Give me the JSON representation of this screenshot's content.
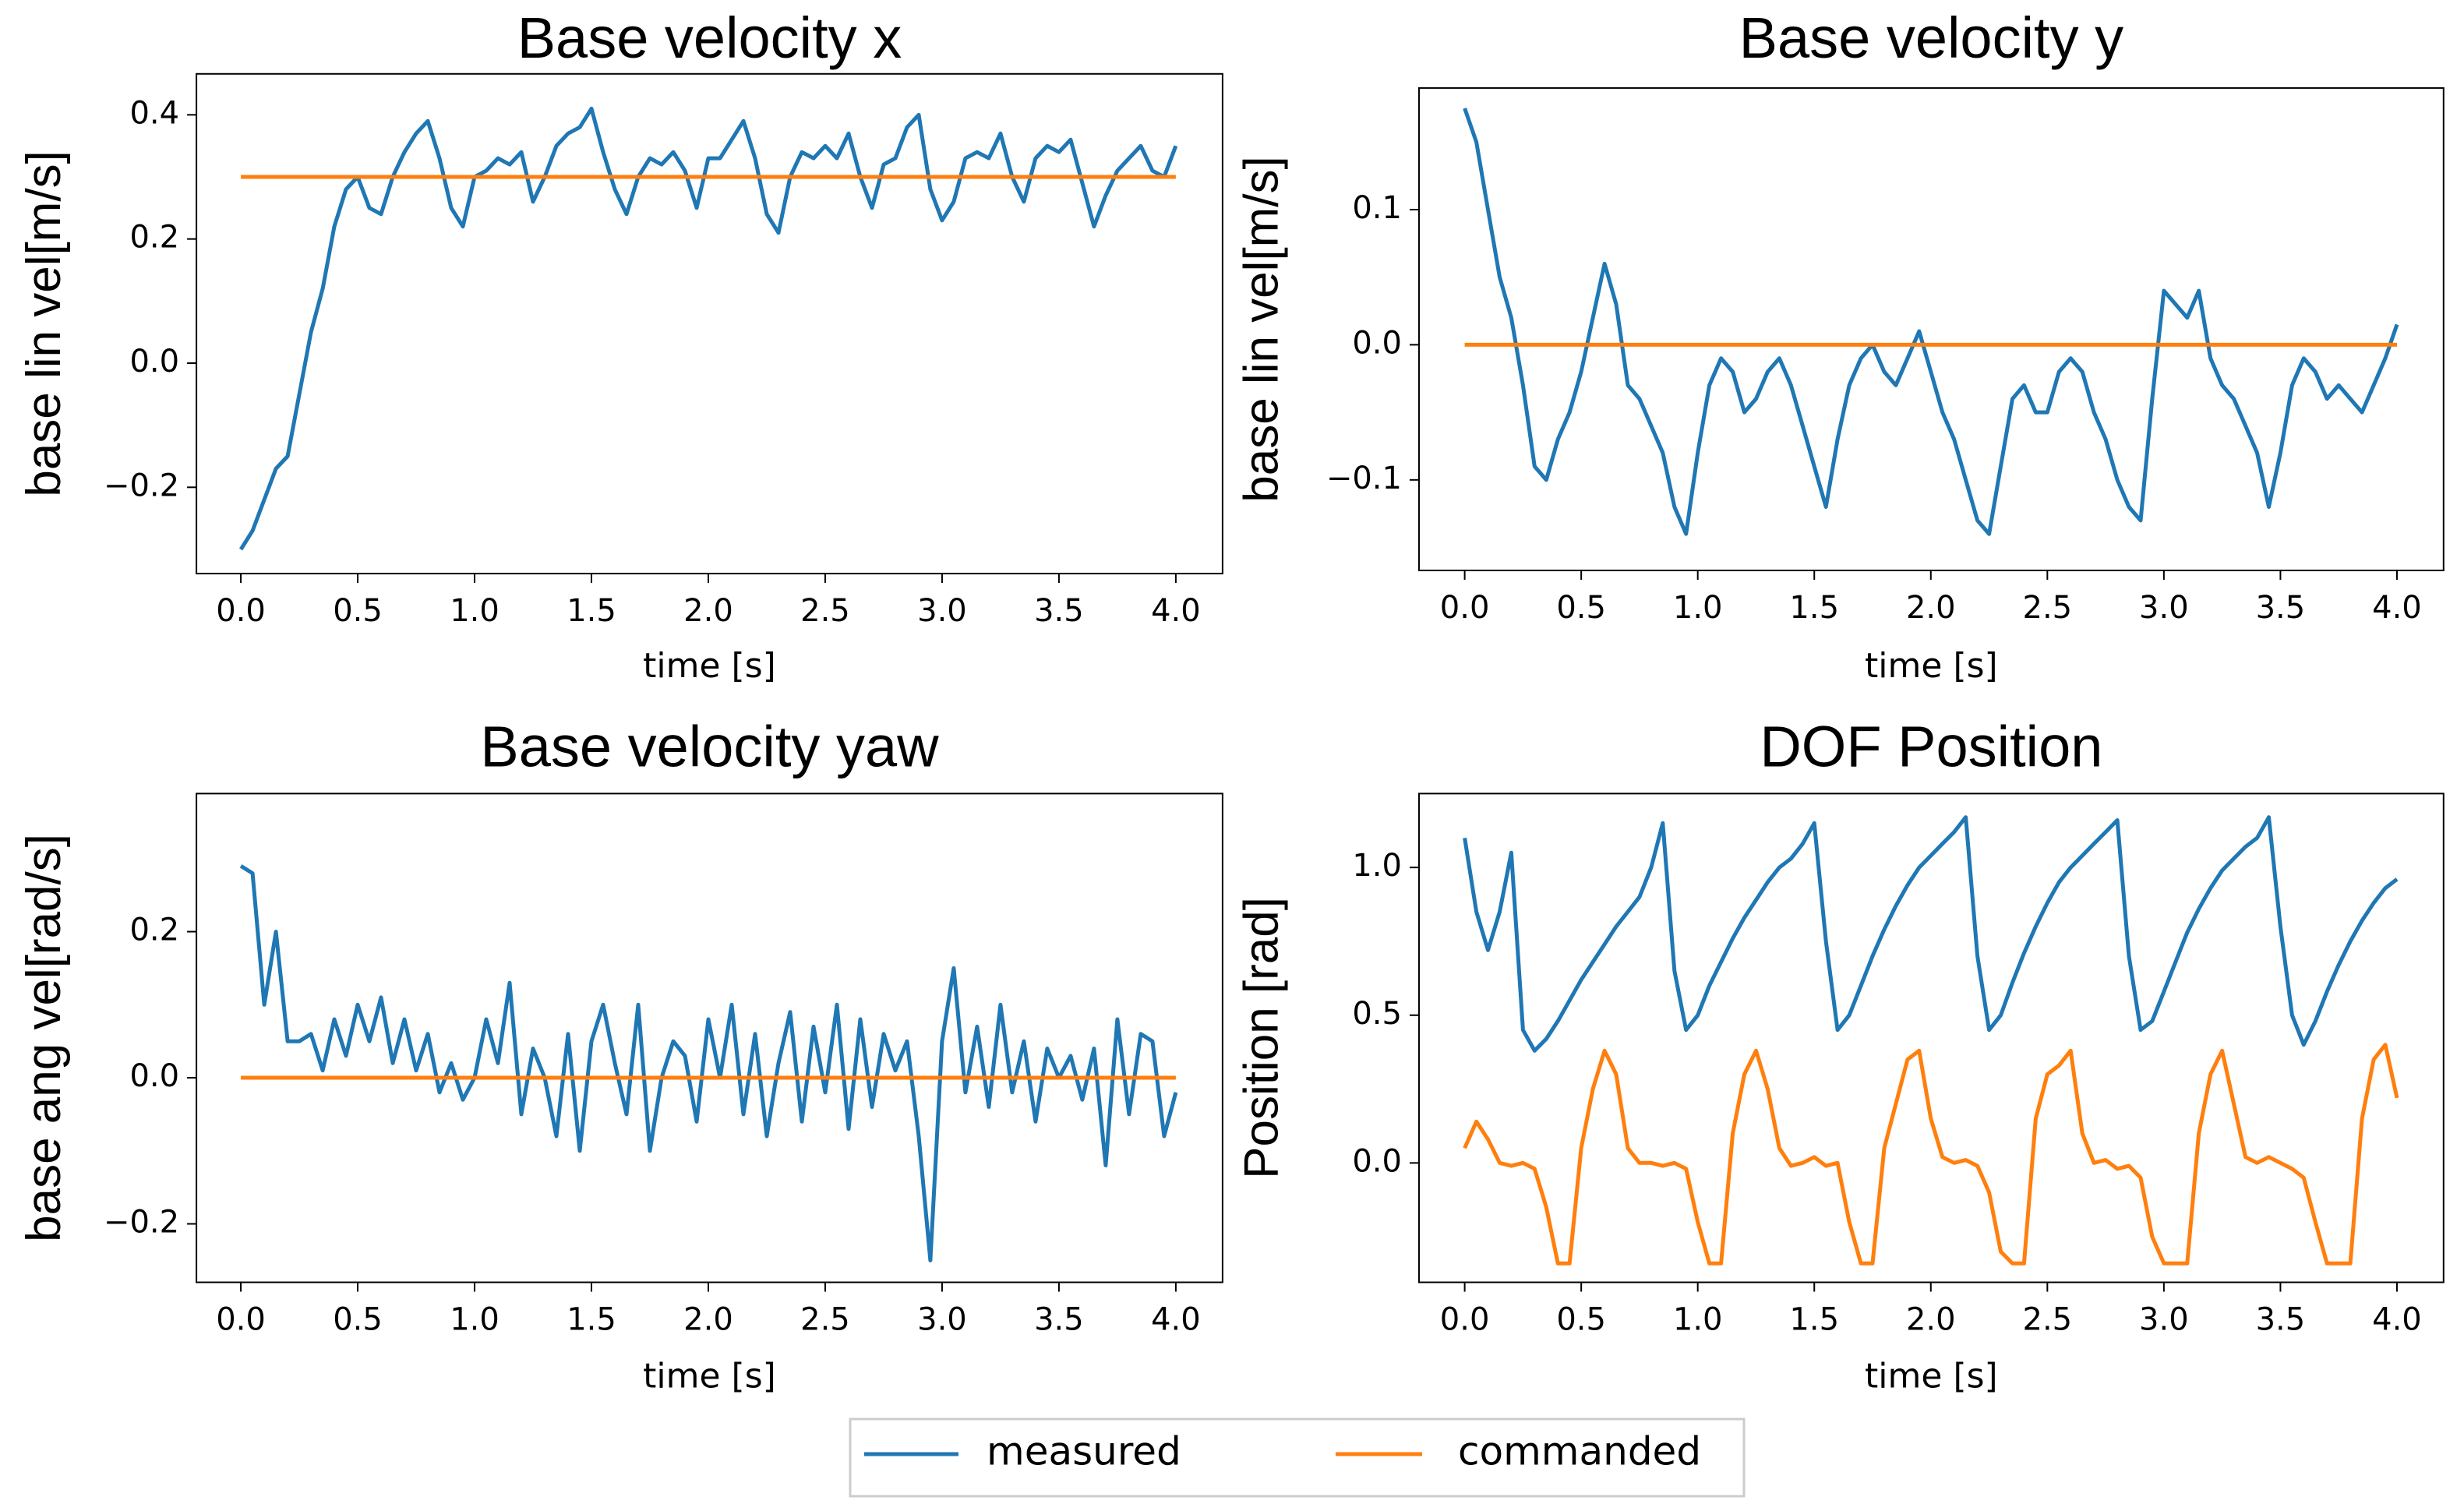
{
  "chart_data": [
    {
      "type": "line",
      "title": "Base velocity x",
      "xlabel": "time [s]",
      "ylabel": "base lin vel[m/s]",
      "x": [
        0,
        0.05,
        0.1,
        0.15,
        0.2,
        0.25,
        0.3,
        0.35,
        0.4,
        0.45,
        0.5,
        0.55,
        0.6,
        0.65,
        0.7,
        0.75,
        0.8,
        0.85,
        0.9,
        0.95,
        1.0,
        1.05,
        1.1,
        1.15,
        1.2,
        1.25,
        1.3,
        1.35,
        1.4,
        1.45,
        1.5,
        1.55,
        1.6,
        1.65,
        1.7,
        1.75,
        1.8,
        1.85,
        1.9,
        1.95,
        2.0,
        2.05,
        2.1,
        2.15,
        2.2,
        2.25,
        2.3,
        2.35,
        2.4,
        2.45,
        2.5,
        2.55,
        2.6,
        2.65,
        2.7,
        2.75,
        2.8,
        2.85,
        2.9,
        2.95,
        3.0,
        3.05,
        3.1,
        3.15,
        3.2,
        3.25,
        3.3,
        3.35,
        3.4,
        3.45,
        3.5,
        3.55,
        3.6,
        3.65,
        3.7,
        3.75,
        3.8,
        3.85,
        3.9,
        3.95,
        4.0
      ],
      "series": [
        {
          "name": "measured",
          "color": "#1f77b4",
          "values": [
            -0.3,
            -0.27,
            -0.22,
            -0.17,
            -0.15,
            -0.05,
            0.05,
            0.12,
            0.22,
            0.28,
            0.3,
            0.25,
            0.24,
            0.3,
            0.34,
            0.37,
            0.39,
            0.33,
            0.25,
            0.22,
            0.3,
            0.31,
            0.33,
            0.32,
            0.34,
            0.26,
            0.3,
            0.35,
            0.37,
            0.38,
            0.41,
            0.34,
            0.28,
            0.24,
            0.3,
            0.33,
            0.32,
            0.34,
            0.31,
            0.25,
            0.33,
            0.33,
            0.36,
            0.39,
            0.33,
            0.24,
            0.21,
            0.3,
            0.34,
            0.33,
            0.35,
            0.33,
            0.37,
            0.3,
            0.25,
            0.32,
            0.33,
            0.38,
            0.4,
            0.28,
            0.23,
            0.26,
            0.33,
            0.34,
            0.33,
            0.37,
            0.3,
            0.26,
            0.33,
            0.35,
            0.34,
            0.36,
            0.29,
            0.22,
            0.27,
            0.31,
            0.33,
            0.35,
            0.31,
            0.3,
            0.35
          ]
        },
        {
          "name": "commanded",
          "color": "#ff7f0e",
          "values": [
            0.3,
            0.3,
            0.3,
            0.3,
            0.3,
            0.3,
            0.3,
            0.3,
            0.3,
            0.3,
            0.3,
            0.3,
            0.3,
            0.3,
            0.3,
            0.3,
            0.3,
            0.3,
            0.3,
            0.3,
            0.3,
            0.3,
            0.3,
            0.3,
            0.3,
            0.3,
            0.3,
            0.3,
            0.3,
            0.3,
            0.3,
            0.3,
            0.3,
            0.3,
            0.3,
            0.3,
            0.3,
            0.3,
            0.3,
            0.3,
            0.3,
            0.3,
            0.3,
            0.3,
            0.3,
            0.3,
            0.3,
            0.3,
            0.3,
            0.3,
            0.3,
            0.3,
            0.3,
            0.3,
            0.3,
            0.3,
            0.3,
            0.3,
            0.3,
            0.3,
            0.3,
            0.3,
            0.3,
            0.3,
            0.3,
            0.3,
            0.3,
            0.3,
            0.3,
            0.3,
            0.3,
            0.3,
            0.3,
            0.3,
            0.3,
            0.3,
            0.3,
            0.3,
            0.3,
            0.3,
            0.3
          ]
        }
      ],
      "xlim": [
        -0.19,
        4.2
      ],
      "xticks": [
        {
          "value": 0,
          "label": "0.0"
        },
        0.5,
        {
          "value": 1,
          "label": "1.0"
        },
        1.5,
        {
          "value": 2,
          "label": "2.0"
        },
        2.5,
        {
          "value": 3,
          "label": "3.0"
        },
        3.5,
        {
          "value": 4,
          "label": "4.0"
        }
      ],
      "ylim": [
        -0.339,
        0.466
      ],
      "yticks": [
        {
          "value": -0.2,
          "label": "−0.2"
        },
        {
          "value": 0,
          "label": "0.0"
        },
        0.2,
        0.4
      ]
    },
    {
      "type": "line",
      "title": "Base velocity y",
      "xlabel": "time [s]",
      "ylabel": "base lin vel[m/s]",
      "x": [
        0,
        0.05,
        0.1,
        0.15,
        0.2,
        0.25,
        0.3,
        0.35,
        0.4,
        0.45,
        0.5,
        0.55,
        0.6,
        0.65,
        0.7,
        0.75,
        0.8,
        0.85,
        0.9,
        0.95,
        1.0,
        1.05,
        1.1,
        1.15,
        1.2,
        1.25,
        1.3,
        1.35,
        1.4,
        1.45,
        1.5,
        1.55,
        1.6,
        1.65,
        1.7,
        1.75,
        1.8,
        1.85,
        1.9,
        1.95,
        2.0,
        2.05,
        2.1,
        2.15,
        2.2,
        2.25,
        2.3,
        2.35,
        2.4,
        2.45,
        2.5,
        2.55,
        2.6,
        2.65,
        2.7,
        2.75,
        2.8,
        2.85,
        2.9,
        2.95,
        3.0,
        3.05,
        3.1,
        3.15,
        3.2,
        3.25,
        3.3,
        3.35,
        3.4,
        3.45,
        3.5,
        3.55,
        3.6,
        3.65,
        3.7,
        3.75,
        3.8,
        3.85,
        3.9,
        3.95,
        4.0
      ],
      "series": [
        {
          "name": "measured",
          "color": "#1f77b4",
          "values": [
            0.175,
            0.15,
            0.1,
            0.05,
            0.02,
            -0.03,
            -0.09,
            -0.1,
            -0.07,
            -0.05,
            -0.02,
            0.02,
            0.06,
            0.03,
            -0.03,
            -0.04,
            -0.06,
            -0.08,
            -0.12,
            -0.14,
            -0.08,
            -0.03,
            -0.01,
            -0.02,
            -0.05,
            -0.04,
            -0.02,
            -0.01,
            -0.03,
            -0.06,
            -0.09,
            -0.12,
            -0.07,
            -0.03,
            -0.01,
            0.0,
            -0.02,
            -0.03,
            -0.01,
            0.01,
            -0.02,
            -0.05,
            -0.07,
            -0.1,
            -0.13,
            -0.14,
            -0.09,
            -0.04,
            -0.03,
            -0.05,
            -0.05,
            -0.02,
            -0.01,
            -0.02,
            -0.05,
            -0.07,
            -0.1,
            -0.12,
            -0.13,
            -0.04,
            0.04,
            0.03,
            0.02,
            0.04,
            -0.01,
            -0.03,
            -0.04,
            -0.06,
            -0.08,
            -0.12,
            -0.08,
            -0.03,
            -0.01,
            -0.02,
            -0.04,
            -0.03,
            -0.04,
            -0.05,
            -0.03,
            -0.01,
            0.015
          ]
        },
        {
          "name": "commanded",
          "color": "#ff7f0e",
          "values": [
            0,
            0,
            0,
            0,
            0,
            0,
            0,
            0,
            0,
            0,
            0,
            0,
            0,
            0,
            0,
            0,
            0,
            0,
            0,
            0,
            0,
            0,
            0,
            0,
            0,
            0,
            0,
            0,
            0,
            0,
            0,
            0,
            0,
            0,
            0,
            0,
            0,
            0,
            0,
            0,
            0,
            0,
            0,
            0,
            0,
            0,
            0,
            0,
            0,
            0,
            0,
            0,
            0,
            0,
            0,
            0,
            0,
            0,
            0,
            0,
            0,
            0,
            0,
            0,
            0,
            0,
            0,
            0,
            0,
            0,
            0,
            0,
            0,
            0,
            0,
            0,
            0,
            0,
            0,
            0,
            0
          ]
        }
      ],
      "xlim": [
        -0.196,
        4.2
      ],
      "xticks": [
        {
          "value": 0,
          "label": "0.0"
        },
        0.5,
        {
          "value": 1,
          "label": "1.0"
        },
        1.5,
        {
          "value": 2,
          "label": "2.0"
        },
        2.5,
        {
          "value": 3,
          "label": "3.0"
        },
        3.5,
        {
          "value": 4,
          "label": "4.0"
        }
      ],
      "ylim": [
        -0.167,
        0.19
      ],
      "yticks": [
        {
          "value": -0.1,
          "label": "−0.1"
        },
        {
          "value": 0,
          "label": "0.0"
        },
        0.1
      ]
    },
    {
      "type": "line",
      "title": "Base velocity yaw",
      "xlabel": "time [s]",
      "ylabel": "base ang vel[rad/s]",
      "x": [
        0,
        0.05,
        0.1,
        0.15,
        0.2,
        0.25,
        0.3,
        0.35,
        0.4,
        0.45,
        0.5,
        0.55,
        0.6,
        0.65,
        0.7,
        0.75,
        0.8,
        0.85,
        0.9,
        0.95,
        1.0,
        1.05,
        1.1,
        1.15,
        1.2,
        1.25,
        1.3,
        1.35,
        1.4,
        1.45,
        1.5,
        1.55,
        1.6,
        1.65,
        1.7,
        1.75,
        1.8,
        1.85,
        1.9,
        1.95,
        2.0,
        2.05,
        2.1,
        2.15,
        2.2,
        2.25,
        2.3,
        2.35,
        2.4,
        2.45,
        2.5,
        2.55,
        2.6,
        2.65,
        2.7,
        2.75,
        2.8,
        2.85,
        2.9,
        2.95,
        3.0,
        3.05,
        3.1,
        3.15,
        3.2,
        3.25,
        3.3,
        3.35,
        3.4,
        3.45,
        3.5,
        3.55,
        3.6,
        3.65,
        3.7,
        3.75,
        3.8,
        3.85,
        3.9,
        3.95,
        4.0
      ],
      "series": [
        {
          "name": "measured",
          "color": "#1f77b4",
          "values": [
            0.29,
            0.28,
            0.1,
            0.2,
            0.05,
            0.05,
            0.06,
            0.01,
            0.08,
            0.03,
            0.1,
            0.05,
            0.11,
            0.02,
            0.08,
            0.01,
            0.06,
            -0.02,
            0.02,
            -0.03,
            0.0,
            0.08,
            0.02,
            0.13,
            -0.05,
            0.04,
            0.0,
            -0.08,
            0.06,
            -0.1,
            0.05,
            0.1,
            0.02,
            -0.05,
            0.1,
            -0.1,
            0.0,
            0.05,
            0.03,
            -0.06,
            0.08,
            0.0,
            0.1,
            -0.05,
            0.06,
            -0.08,
            0.02,
            0.09,
            -0.06,
            0.07,
            -0.02,
            0.1,
            -0.07,
            0.08,
            -0.04,
            0.06,
            0.01,
            0.05,
            -0.08,
            -0.25,
            0.05,
            0.15,
            -0.02,
            0.07,
            -0.04,
            0.1,
            -0.02,
            0.05,
            -0.06,
            0.04,
            0.0,
            0.03,
            -0.03,
            0.04,
            -0.12,
            0.08,
            -0.05,
            0.06,
            0.05,
            -0.08,
            -0.02
          ]
        },
        {
          "name": "commanded",
          "color": "#ff7f0e",
          "values": [
            0,
            0,
            0,
            0,
            0,
            0,
            0,
            0,
            0,
            0,
            0,
            0,
            0,
            0,
            0,
            0,
            0,
            0,
            0,
            0,
            0,
            0,
            0,
            0,
            0,
            0,
            0,
            0,
            0,
            0,
            0,
            0,
            0,
            0,
            0,
            0,
            0,
            0,
            0,
            0,
            0,
            0,
            0,
            0,
            0,
            0,
            0,
            0,
            0,
            0,
            0,
            0,
            0,
            0,
            0,
            0,
            0,
            0,
            0,
            0,
            0,
            0,
            0,
            0,
            0,
            0,
            0,
            0,
            0,
            0,
            0,
            0,
            0,
            0,
            0,
            0,
            0,
            0,
            0,
            0,
            0
          ]
        }
      ],
      "xlim": [
        -0.19,
        4.2
      ],
      "xticks": [
        {
          "value": 0,
          "label": "0.0"
        },
        0.5,
        {
          "value": 1,
          "label": "1.0"
        },
        1.5,
        {
          "value": 2,
          "label": "2.0"
        },
        2.5,
        {
          "value": 3,
          "label": "3.0"
        },
        3.5,
        {
          "value": 4,
          "label": "4.0"
        }
      ],
      "ylim": [
        -0.28,
        0.389
      ],
      "yticks": [
        {
          "value": -0.2,
          "label": "−0.2"
        },
        {
          "value": 0,
          "label": "0.0"
        },
        0.2
      ]
    },
    {
      "type": "line",
      "title": "DOF Position",
      "xlabel": "time [s]",
      "ylabel": "Position [rad]",
      "x": [
        0,
        0.05,
        0.1,
        0.15,
        0.2,
        0.25,
        0.3,
        0.35,
        0.4,
        0.45,
        0.5,
        0.55,
        0.6,
        0.65,
        0.7,
        0.75,
        0.8,
        0.85,
        0.9,
        0.95,
        1.0,
        1.05,
        1.1,
        1.15,
        1.2,
        1.25,
        1.3,
        1.35,
        1.4,
        1.45,
        1.5,
        1.55,
        1.6,
        1.65,
        1.7,
        1.75,
        1.8,
        1.85,
        1.9,
        1.95,
        2.0,
        2.05,
        2.1,
        2.15,
        2.2,
        2.25,
        2.3,
        2.35,
        2.4,
        2.45,
        2.5,
        2.55,
        2.6,
        2.65,
        2.7,
        2.75,
        2.8,
        2.85,
        2.9,
        2.95,
        3.0,
        3.05,
        3.1,
        3.15,
        3.2,
        3.25,
        3.3,
        3.35,
        3.4,
        3.45,
        3.5,
        3.55,
        3.6,
        3.65,
        3.7,
        3.75,
        3.8,
        3.85,
        3.9,
        3.95,
        4.0
      ],
      "series": [
        {
          "name": "measured",
          "color": "#1f77b4",
          "values": [
            1.1,
            0.85,
            0.72,
            0.85,
            1.05,
            0.45,
            0.38,
            0.42,
            0.48,
            0.55,
            0.62,
            0.68,
            0.74,
            0.8,
            0.85,
            0.9,
            1.0,
            1.15,
            0.65,
            0.45,
            0.5,
            0.6,
            0.68,
            0.76,
            0.83,
            0.89,
            0.95,
            1.0,
            1.03,
            1.08,
            1.15,
            0.75,
            0.45,
            0.5,
            0.6,
            0.7,
            0.79,
            0.87,
            0.94,
            1.0,
            1.04,
            1.08,
            1.12,
            1.17,
            0.7,
            0.45,
            0.5,
            0.61,
            0.71,
            0.8,
            0.88,
            0.95,
            1.0,
            1.04,
            1.08,
            1.12,
            1.16,
            0.7,
            0.45,
            0.48,
            0.58,
            0.68,
            0.78,
            0.86,
            0.93,
            0.99,
            1.03,
            1.07,
            1.1,
            1.17,
            0.8,
            0.5,
            0.4,
            0.48,
            0.58,
            0.67,
            0.75,
            0.82,
            0.88,
            0.93,
            0.96
          ]
        },
        {
          "name": "commanded",
          "color": "#ff7f0e",
          "values": [
            0.05,
            0.14,
            0.08,
            0.0,
            -0.01,
            0.0,
            -0.02,
            -0.15,
            -0.34,
            -0.34,
            0.05,
            0.25,
            0.38,
            0.3,
            0.05,
            0.0,
            0.0,
            -0.01,
            0.0,
            -0.02,
            -0.2,
            -0.34,
            -0.34,
            0.1,
            0.3,
            0.38,
            0.25,
            0.05,
            -0.01,
            0.0,
            0.02,
            -0.01,
            0.0,
            -0.2,
            -0.34,
            -0.34,
            0.05,
            0.2,
            0.35,
            0.38,
            0.15,
            0.02,
            0.0,
            0.01,
            -0.01,
            -0.1,
            -0.3,
            -0.34,
            -0.34,
            0.15,
            0.3,
            0.33,
            0.38,
            0.1,
            0.0,
            0.01,
            -0.02,
            -0.01,
            -0.05,
            -0.25,
            -0.34,
            -0.34,
            -0.34,
            0.1,
            0.3,
            0.38,
            0.2,
            0.02,
            0.0,
            0.02,
            0.0,
            -0.02,
            -0.05,
            -0.2,
            -0.34,
            -0.34,
            -0.34,
            0.15,
            0.35,
            0.4,
            0.22
          ]
        }
      ],
      "xlim": [
        -0.196,
        4.2
      ],
      "xticks": [
        {
          "value": 0,
          "label": "0.0"
        },
        0.5,
        {
          "value": 1,
          "label": "1.0"
        },
        1.5,
        {
          "value": 2,
          "label": "2.0"
        },
        2.5,
        {
          "value": 3,
          "label": "3.0"
        },
        3.5,
        {
          "value": 4,
          "label": "4.0"
        }
      ],
      "ylim": [
        -0.404,
        1.25
      ],
      "yticks": [
        {
          "value": 0,
          "label": "0.0"
        },
        0.5,
        {
          "value": 1,
          "label": "1.0"
        }
      ]
    }
  ]
}
